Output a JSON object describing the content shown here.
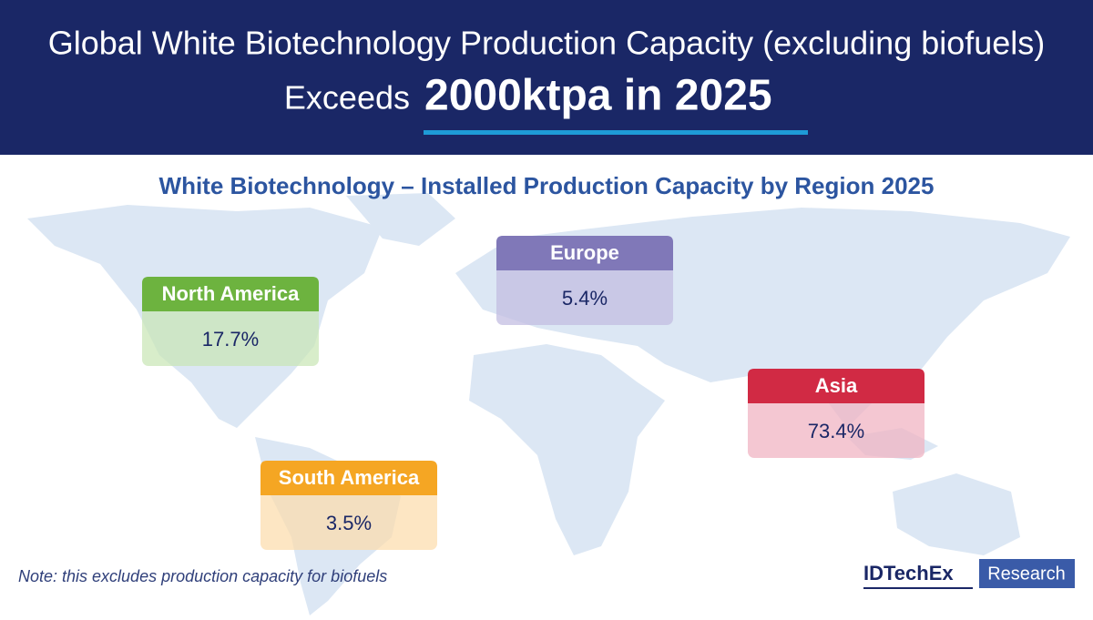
{
  "header": {
    "title_line1": "Global White Biotechnology Production Capacity (excluding biofuels)",
    "title_prefix": "Exceeds",
    "title_highlight": "2000ktpa in 2025"
  },
  "subtitle": "White Biotechnology – Installed Production Capacity by Region 2025",
  "regions": [
    {
      "name": "North America",
      "value": "17.7%"
    },
    {
      "name": "Europe",
      "value": "5.4%"
    },
    {
      "name": "Asia",
      "value": "73.4%"
    },
    {
      "name": "South America",
      "value": "3.5%"
    }
  ],
  "note": "Note: this excludes production capacity for biofuels",
  "logo": {
    "brand": "IDTechEx",
    "tag": "Research"
  }
}
